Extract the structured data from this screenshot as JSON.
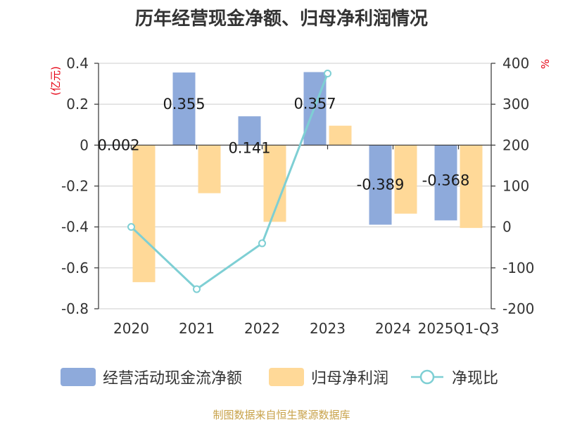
{
  "chart_data": {
    "type": "bar+line",
    "title": "历年经营现金净额、归母净利润情况",
    "categories": [
      "2020",
      "2021",
      "2022",
      "2023",
      "2024",
      "2025Q1-Q3"
    ],
    "left_axis": {
      "unit": "(亿元)",
      "min": -0.8,
      "max": 0.4,
      "ticks": [
        "0.4",
        "0.2",
        "0",
        "-0.2",
        "-0.4",
        "-0.6",
        "-0.8"
      ]
    },
    "right_axis": {
      "unit": "%",
      "min": -200,
      "max": 400,
      "ticks": [
        "400",
        "300",
        "200",
        "100",
        "0",
        "-100",
        "-200"
      ]
    },
    "series": [
      {
        "name": "经营活动现金流净额",
        "type": "bar",
        "axis": "left",
        "color": "#8eaadb",
        "values": [
          0.002,
          0.355,
          0.141,
          0.357,
          -0.389,
          -0.368
        ],
        "labels": [
          "0.002",
          "0.355",
          "0.141",
          "0.357",
          "-0.389",
          "-0.368"
        ]
      },
      {
        "name": "归母净利润",
        "type": "bar",
        "axis": "left",
        "color": "#ffd998",
        "values": [
          -0.67,
          -0.235,
          -0.375,
          0.095,
          -0.335,
          -0.405
        ]
      },
      {
        "name": "净现比",
        "type": "line",
        "axis": "right",
        "color": "#7ecfd4",
        "values": [
          0,
          -152,
          -40,
          375,
          null,
          null
        ]
      }
    ]
  },
  "source": "制图数据来自恒生聚源数据库"
}
